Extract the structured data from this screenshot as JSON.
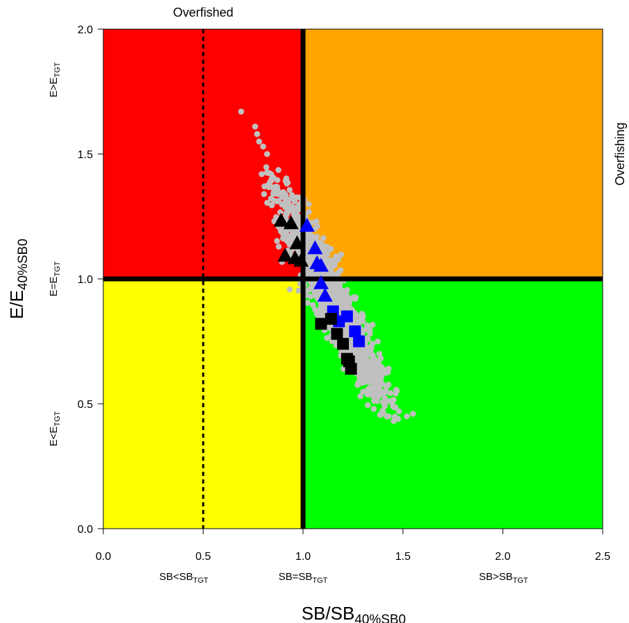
{
  "colors": {
    "overfished_overfishing": "#ff0000",
    "overfishing_only": "#ffa500",
    "overfished_only": "#ffff00",
    "healthy": "#00ff00",
    "cloud": "#c0c0c0",
    "recent_triangles": "#0000ff",
    "earlier_triangles": "#000000",
    "recent_squares": "#0000ff",
    "earlier_squares": "#000000"
  },
  "chart_data": {
    "type": "scatter",
    "title": "",
    "xlabel": {
      "main": "SB/SB",
      "sub": "40%SB0"
    },
    "ylabel": {
      "main": "E/E",
      "sub": "40%SB0"
    },
    "xlim": [
      0,
      2.5
    ],
    "ylim": [
      0,
      2.0
    ],
    "x_ticks": [
      {
        "value": 0.0,
        "label": "0.0"
      },
      {
        "value": 0.5,
        "label": "0.5"
      },
      {
        "value": 1.0,
        "label": "1.0"
      },
      {
        "value": 1.5,
        "label": "1.5"
      },
      {
        "value": 2.0,
        "label": "2.0"
      },
      {
        "value": 2.5,
        "label": "2.5"
      }
    ],
    "y_ticks": [
      {
        "value": 0.0,
        "label": "0.0"
      },
      {
        "value": 0.5,
        "label": "0.5"
      },
      {
        "value": 1.0,
        "label": "1.0"
      },
      {
        "value": 1.5,
        "label": "1.5"
      },
      {
        "value": 2.0,
        "label": "2.0"
      }
    ],
    "x_category_labels": [
      {
        "main": "SB<SB",
        "sub": "TGT"
      },
      {
        "main": "SB=SB",
        "sub": "TGT"
      },
      {
        "main": "SB>SB",
        "sub": "TGT"
      }
    ],
    "y_category_labels": [
      {
        "main": "E>E",
        "sub": "TGT"
      },
      {
        "main": "E=E",
        "sub": "TGT"
      },
      {
        "main": "E<E",
        "sub": "TGT"
      }
    ],
    "top_annotation": "Overfished",
    "right_annotation": "Overfishing",
    "reference_lines": {
      "solid_x": 1.0,
      "solid_y": 1.0,
      "dashed_x": 0.5
    },
    "cloud": {
      "description_x_range": [
        0.7,
        1.55
      ],
      "description_y_range": [
        0.45,
        1.67
      ],
      "outliers": [
        [
          0.69,
          1.67
        ],
        [
          0.76,
          1.61
        ],
        [
          0.77,
          1.58
        ],
        [
          0.78,
          1.55
        ],
        [
          0.8,
          1.53
        ],
        [
          0.82,
          1.5
        ],
        [
          1.55,
          0.46
        ],
        [
          1.52,
          0.45
        ],
        [
          1.48,
          0.47
        ]
      ]
    },
    "series": [
      {
        "name": "",
        "marker": "triangle",
        "color": "#000000",
        "points": [
          [
            0.89,
            1.23
          ],
          [
            0.94,
            1.22
          ],
          [
            0.97,
            1.14
          ],
          [
            0.91,
            1.09
          ],
          [
            0.96,
            1.08
          ],
          [
            0.99,
            1.07
          ]
        ]
      },
      {
        "name": "",
        "marker": "triangle",
        "color": "#0000ff",
        "points": [
          [
            1.02,
            1.21
          ],
          [
            1.06,
            1.12
          ],
          [
            1.07,
            1.06
          ],
          [
            1.09,
            1.05
          ],
          [
            1.09,
            0.98
          ],
          [
            1.11,
            0.93
          ]
        ]
      },
      {
        "name": "",
        "marker": "square",
        "color": "#0000ff",
        "points": [
          [
            1.15,
            0.87
          ],
          [
            1.18,
            0.83
          ],
          [
            1.22,
            0.85
          ],
          [
            1.26,
            0.79
          ],
          [
            1.28,
            0.75
          ]
        ]
      },
      {
        "name": "",
        "marker": "square",
        "color": "#000000",
        "points": [
          [
            1.09,
            0.82
          ],
          [
            1.14,
            0.84
          ],
          [
            1.17,
            0.78
          ],
          [
            1.2,
            0.74
          ],
          [
            1.22,
            0.68
          ],
          [
            1.23,
            0.67
          ],
          [
            1.24,
            0.64
          ]
        ]
      }
    ]
  }
}
